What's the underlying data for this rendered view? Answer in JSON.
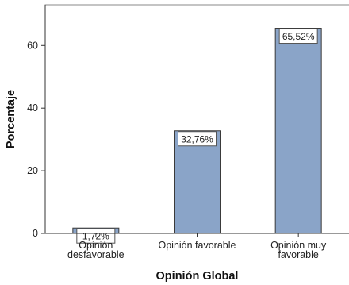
{
  "chart_data": {
    "type": "bar",
    "categories": [
      [
        "Opinión",
        "desfavorable"
      ],
      [
        "Opinión favorable"
      ],
      [
        "Opinión muy",
        "favorable"
      ]
    ],
    "values": [
      1.72,
      32.76,
      65.52
    ],
    "data_labels": [
      "1,72%",
      "32,76%",
      "65,52%"
    ],
    "xlabel": "Opinión Global",
    "ylabel": "Porcentaje",
    "ylim": [
      0,
      73
    ],
    "yticks": [
      0,
      20,
      40,
      60
    ],
    "ytick_labels": [
      "0",
      "20",
      "40",
      "60"
    ],
    "grid": false,
    "colors": {
      "bar_fill": "#8AA4C8",
      "bar_stroke": "#3a3a3a",
      "plot_background": "#ffffff",
      "axis": "#333333",
      "frame": "#888888"
    }
  }
}
